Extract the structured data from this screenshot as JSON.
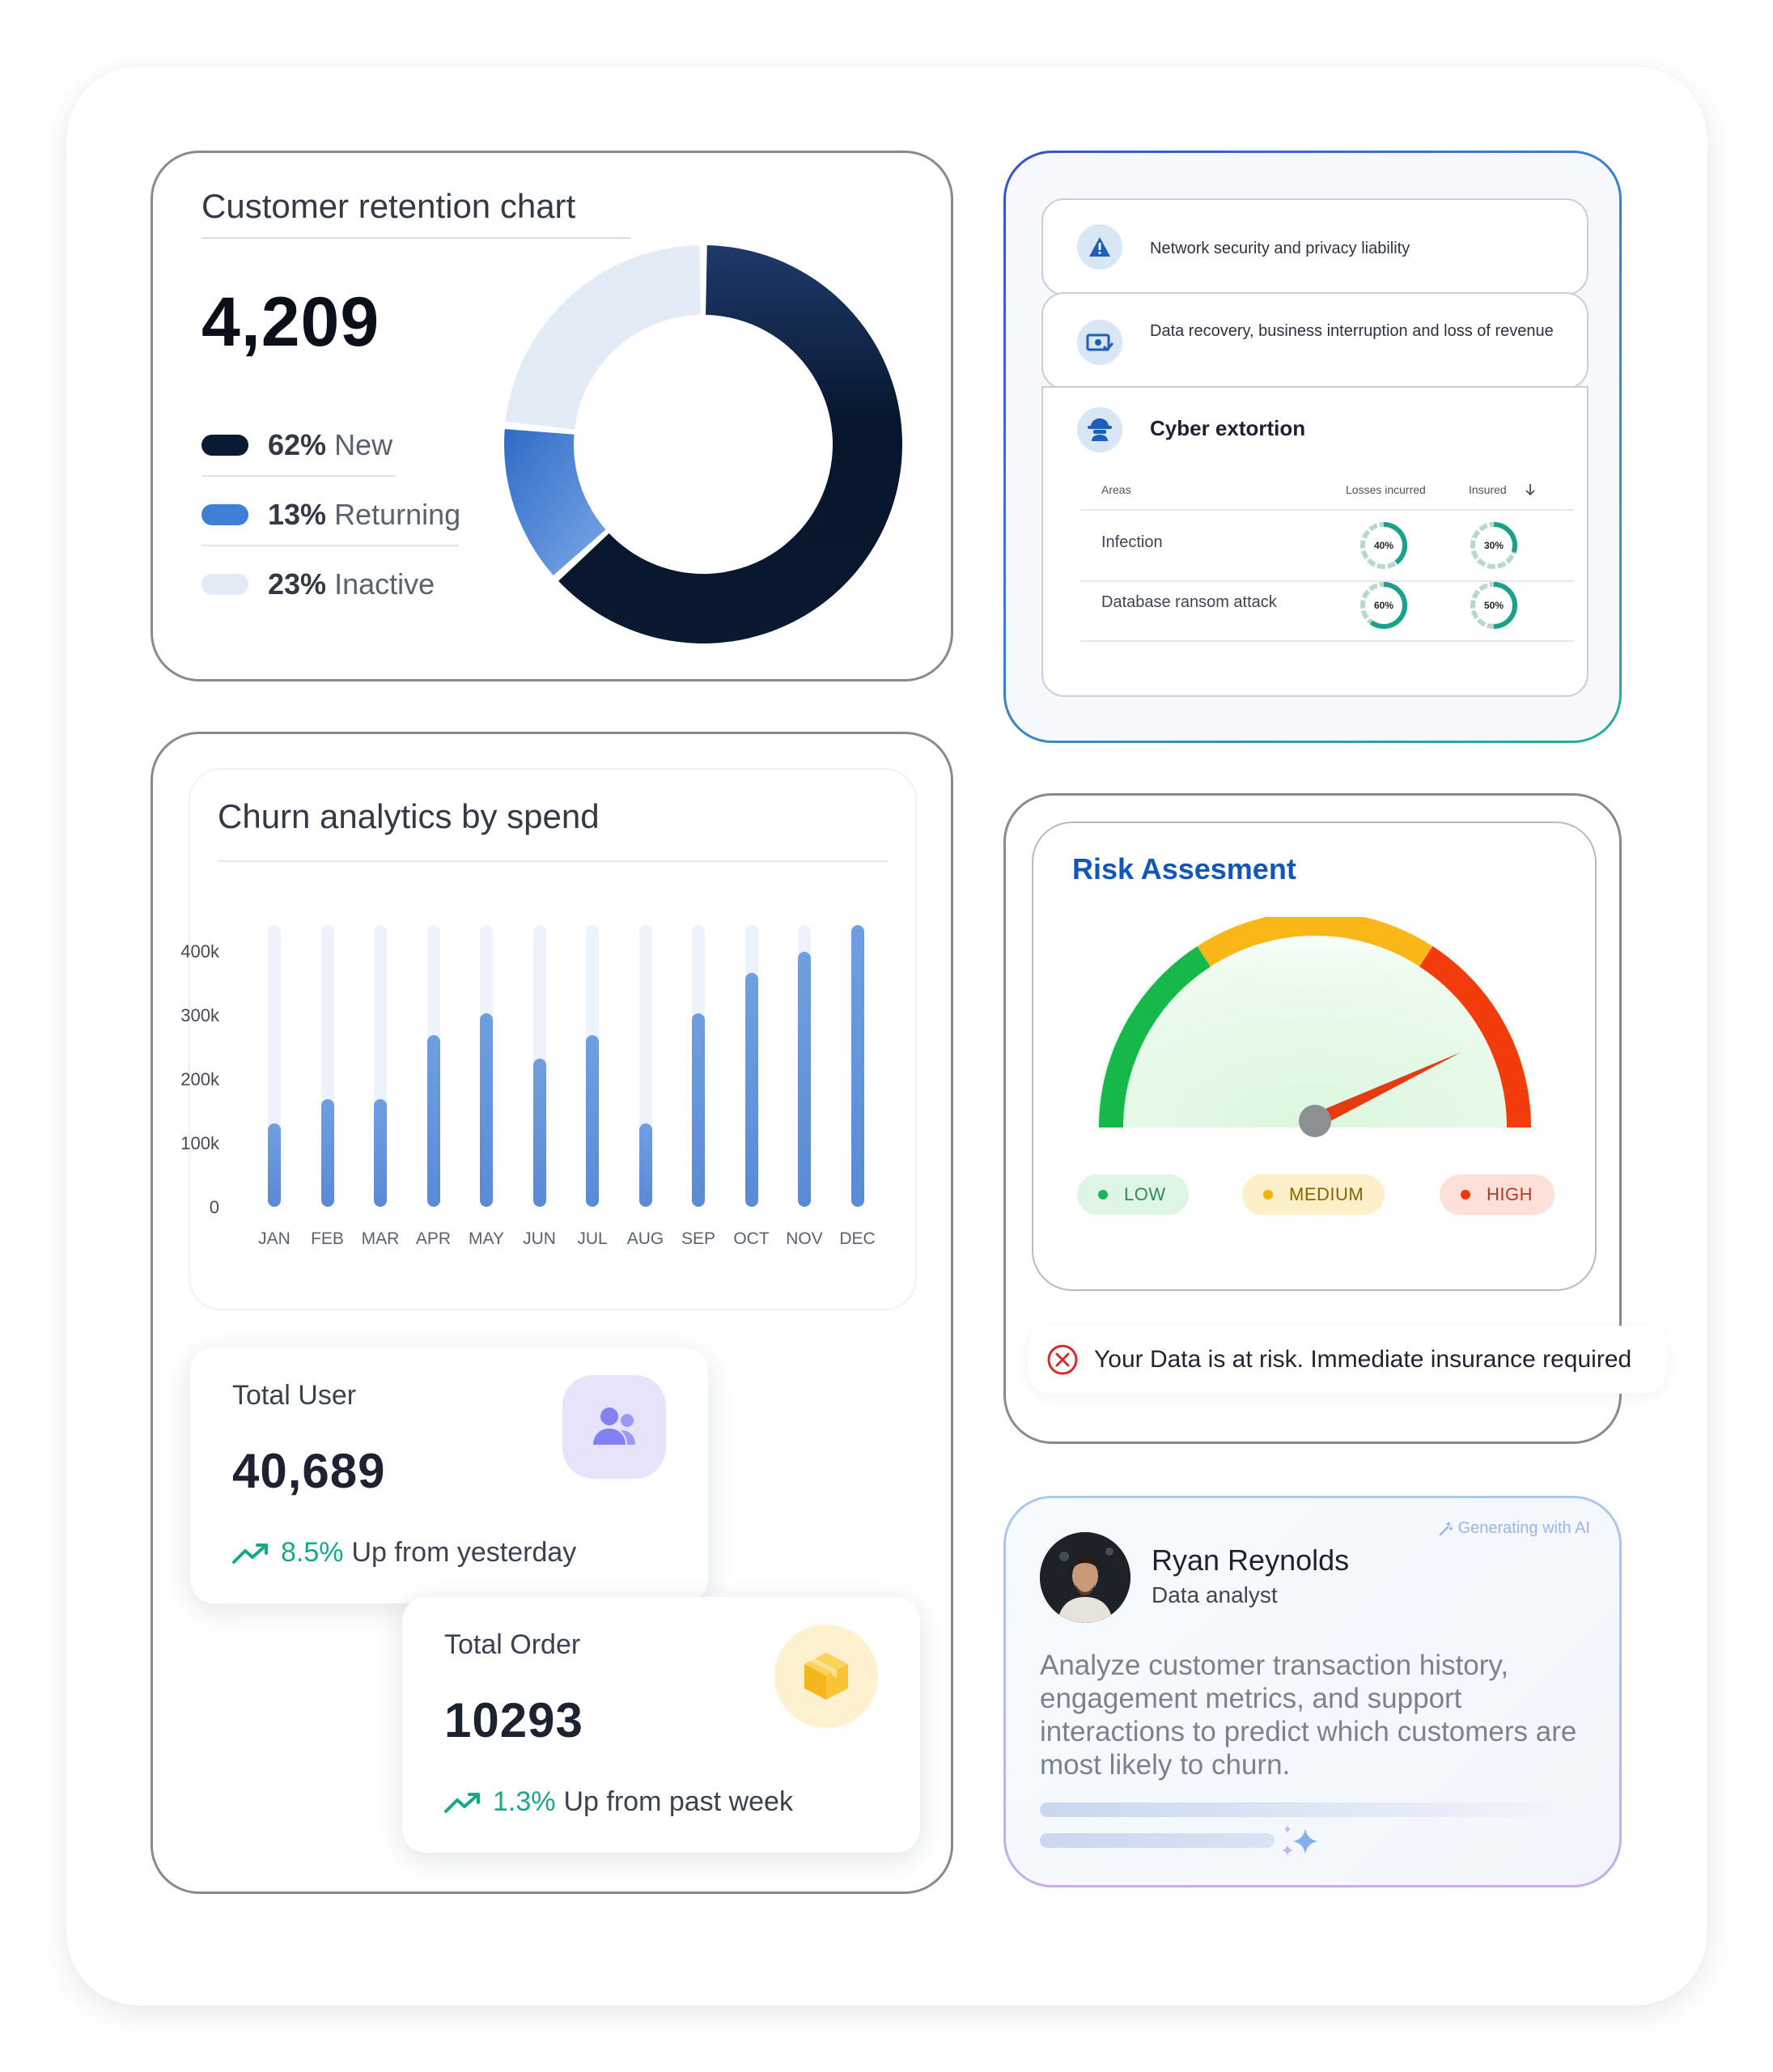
{
  "retention": {
    "title": "Customer retention chart",
    "total": "4,209",
    "legend": [
      {
        "pct": "62%",
        "label": "New",
        "color": "#0b1a33"
      },
      {
        "pct": "13%",
        "label": "Returning",
        "color": "#3f7fd6"
      },
      {
        "pct": "23%",
        "label": "Inactive",
        "color": "#e3ebf6"
      }
    ]
  },
  "chart_data": {
    "type": "bar",
    "title": "Churn analytics by spend",
    "categories": [
      "JAN",
      "FEB",
      "MAR",
      "APR",
      "MAY",
      "JUN",
      "JUL",
      "AUG",
      "SEP",
      "OCT",
      "NOV",
      "DEC"
    ],
    "values": [
      130000,
      168000,
      168000,
      268000,
      302000,
      232000,
      268000,
      130000,
      302000,
      365000,
      398000,
      440000
    ],
    "y_ticks": [
      "400k",
      "300k",
      "200k",
      "100k",
      "0"
    ],
    "ylim": [
      0,
      440000
    ],
    "xlabel": "",
    "ylabel": "",
    "grid": false
  },
  "total_user": {
    "label": "Total User",
    "value": "40,689",
    "pct": "8.5%",
    "text": "Up from yesterday",
    "icon": "users-icon"
  },
  "total_order": {
    "label": "Total Order",
    "value": "10293",
    "pct": "1.3%",
    "text": "Up from past week",
    "icon": "box-icon"
  },
  "cyber": {
    "rows": [
      {
        "text": "Network security and privacy liability",
        "icon": "warning-icon"
      },
      {
        "text": "Data recovery, business interruption and loss of revenue",
        "icon": "money-check-icon"
      }
    ],
    "expanded": {
      "title": "Cyber extortion",
      "icon": "hacker-icon",
      "headers": {
        "area": "Areas",
        "losses": "Losses incurred",
        "insured": "Insured"
      },
      "items": [
        {
          "area": "Infection",
          "losses": "40%",
          "losses_value": 40,
          "insured": "30%",
          "insured_value": 30
        },
        {
          "area": "Database ransom attack",
          "losses": "60%",
          "losses_value": 60,
          "insured": "50%",
          "insured_value": 50
        }
      ]
    }
  },
  "risk": {
    "title": "Risk Assesment",
    "level": 0.86,
    "levels": {
      "low": "LOW",
      "medium": "MEDIUM",
      "high": "HIGH"
    },
    "colors": {
      "low": "#16b84a",
      "medium": "#f9b817",
      "high": "#f23c0c"
    },
    "alert": "Your Data is at risk. Immediate insurance required"
  },
  "ai": {
    "badge": "Generating with AI",
    "name": "Ryan Reynolds",
    "role": "Data analyst",
    "prompt": "Analyze customer transaction history, engagement metrics, and support interactions to predict which customers are most likely to churn."
  }
}
